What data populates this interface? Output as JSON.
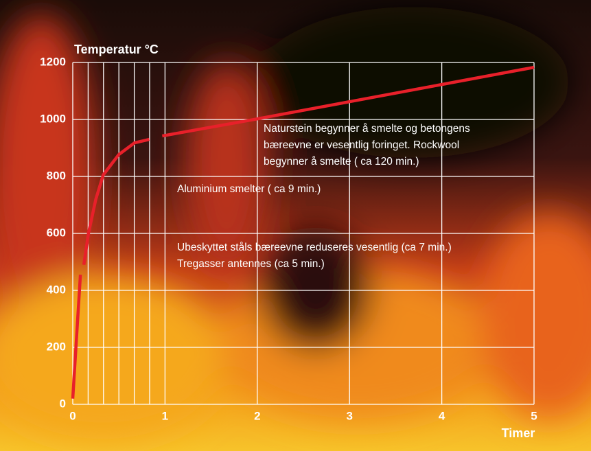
{
  "chart_data": {
    "type": "line",
    "title": "Temperatur °C",
    "x_label": "Timer",
    "x": [
      0,
      0.083,
      0.1,
      0.12,
      0.17,
      0.25,
      0.33,
      0.5,
      0.67,
      0.83,
      0.9,
      0.97,
      2,
      5
    ],
    "series": [
      {
        "color": "#e8202a",
        "values": [
          20,
          455,
          null,
          490,
          600,
          720,
          805,
          877,
          918,
          930,
          null,
          942,
          1002,
          1183
        ]
      }
    ],
    "xlim": [
      0,
      5
    ],
    "xticks": [
      0,
      1,
      2,
      3,
      4,
      5
    ],
    "x_minor_grid": [
      0.1667,
      0.3333,
      0.5,
      0.6667,
      0.8333
    ],
    "ylim": [
      0,
      1200
    ],
    "yticks": [
      0,
      200,
      400,
      600,
      800,
      1000,
      1200
    ],
    "grid": true,
    "annotations": [
      [
        "Naturstein begynner å smelte og betongens",
        "bæreevne er vesentlig foringet. Rockwool",
        "begynner å smelte ( ca 120 min.)"
      ],
      [
        "Aluminium smelter ( ca 9 min.)"
      ],
      [
        "Ubeskyttet ståls bæreevne reduseres vesentlig (ca 7 min.)",
        "Tregasser antennes (ca 5 min.)"
      ]
    ]
  }
}
